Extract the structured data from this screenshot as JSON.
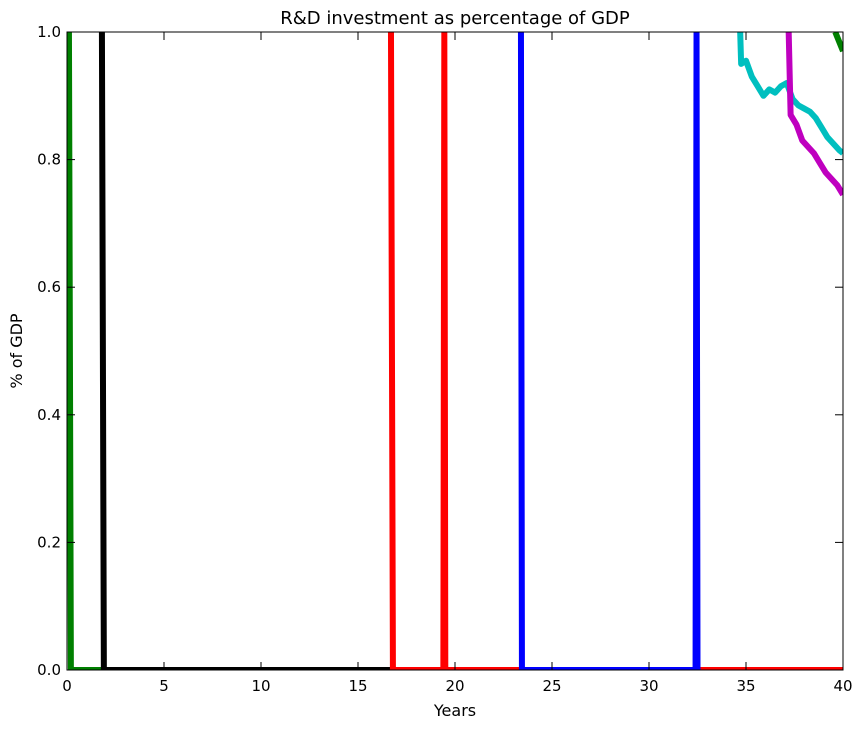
{
  "chart_data": {
    "type": "line",
    "title": "R&D investment as percentage of  GDP",
    "xlabel": "Years",
    "ylabel": "% of GDP",
    "xlim": [
      0,
      40
    ],
    "ylim": [
      0.0,
      1.0
    ],
    "x_ticks": [
      "0",
      "5",
      "10",
      "15",
      "20",
      "25",
      "30",
      "35",
      "40"
    ],
    "y_ticks": [
      "0.0",
      "0.2",
      "0.4",
      "0.6",
      "0.8",
      "1.0"
    ],
    "grid": false,
    "series": [
      {
        "color": "#008000",
        "points": [
          [
            0.1,
            1.0
          ],
          [
            0.2,
            0.0
          ],
          [
            2.0,
            0.0
          ]
        ],
        "tail_points": [
          [
            39.6,
            1.0
          ],
          [
            40.0,
            0.97
          ]
        ]
      },
      {
        "color": "#000000",
        "points": [
          [
            1.8,
            1.0
          ],
          [
            1.9,
            0.0
          ],
          [
            16.9,
            0.0
          ]
        ]
      },
      {
        "color": "#ff0000",
        "points": [
          [
            16.7,
            1.0
          ],
          [
            16.8,
            0.0
          ],
          [
            19.4,
            0.0
          ],
          [
            19.45,
            1.0
          ],
          [
            19.5,
            0.0
          ],
          [
            40.0,
            0.0
          ]
        ]
      },
      {
        "color": "#0000ff",
        "points": [
          [
            23.4,
            1.0
          ],
          [
            23.45,
            0.0
          ],
          [
            32.4,
            0.0
          ],
          [
            32.45,
            1.0
          ],
          [
            32.5,
            0.0
          ]
        ]
      },
      {
        "color": "#00bfbf",
        "points": [
          [
            34.7,
            1.0
          ],
          [
            34.75,
            0.95
          ],
          [
            35.0,
            0.955
          ],
          [
            35.3,
            0.93
          ],
          [
            35.6,
            0.915
          ],
          [
            35.9,
            0.9
          ],
          [
            36.2,
            0.91
          ],
          [
            36.5,
            0.905
          ],
          [
            36.8,
            0.915
          ],
          [
            37.1,
            0.92
          ],
          [
            37.4,
            0.895
          ],
          [
            37.7,
            0.885
          ],
          [
            38.0,
            0.88
          ],
          [
            38.3,
            0.875
          ],
          [
            38.6,
            0.865
          ],
          [
            38.9,
            0.85
          ],
          [
            39.2,
            0.835
          ],
          [
            39.5,
            0.825
          ],
          [
            39.8,
            0.815
          ],
          [
            40.0,
            0.81
          ]
        ]
      },
      {
        "color": "#bf00bf",
        "points": [
          [
            37.2,
            1.0
          ],
          [
            37.3,
            0.87
          ],
          [
            37.6,
            0.855
          ],
          [
            37.9,
            0.83
          ],
          [
            38.2,
            0.82
          ],
          [
            38.5,
            0.81
          ],
          [
            38.8,
            0.795
          ],
          [
            39.1,
            0.78
          ],
          [
            39.4,
            0.77
          ],
          [
            39.7,
            0.76
          ],
          [
            40.0,
            0.745
          ]
        ]
      }
    ]
  }
}
